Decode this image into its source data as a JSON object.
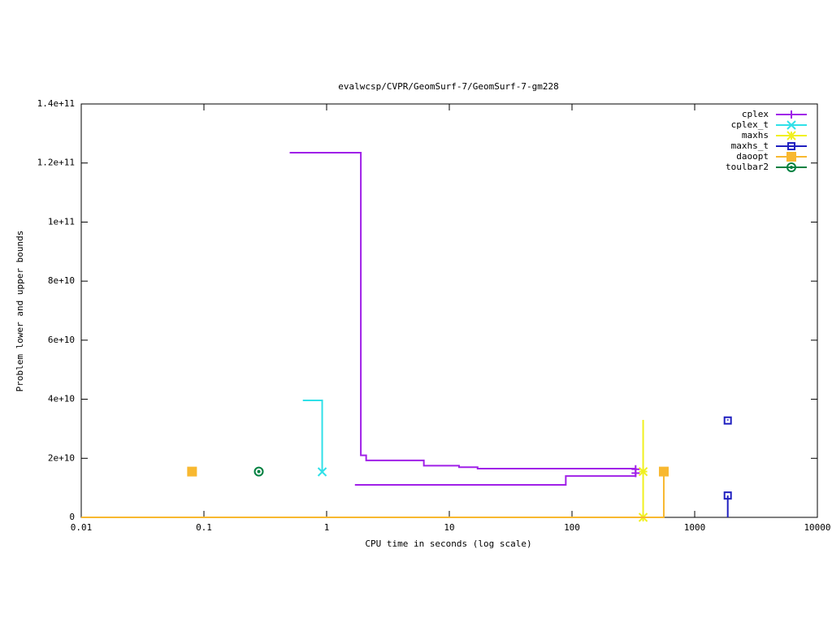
{
  "chart_data": {
    "type": "line",
    "title": "evalwcsp/CVPR/GeomSurf-7/GeomSurf-7-gm228",
    "x_label": "CPU time in seconds (log scale)",
    "y_label": "Problem lower and upper bounds",
    "x_log": true,
    "step": true,
    "xlim": [
      0.01,
      10000
    ],
    "xticks": [
      0.01,
      0.1,
      1,
      10,
      100,
      1000,
      10000
    ],
    "ylim": [
      0,
      140000000000
    ],
    "yticks": [
      0,
      {
        "value": 20000000000,
        "label": "2e+10"
      },
      {
        "value": 40000000000,
        "label": "4e+10"
      },
      {
        "value": 60000000000,
        "label": "6e+10"
      },
      {
        "value": 80000000000,
        "label": "8e+10"
      },
      {
        "value": 100000000000,
        "label": "1e+11"
      },
      {
        "value": 120000000000,
        "label": "1.2e+11"
      },
      {
        "value": 140000000000,
        "label": "1.4e+11"
      }
    ],
    "legend": "top-right",
    "series": [
      {
        "name": "cplex",
        "color": "#a020e8",
        "marker": "plus",
        "x": [
          1.7,
          89,
          330,
          330,
          0.5,
          1.9,
          2.1,
          6.2,
          12,
          17,
          330
        ],
        "values": [
          11000000000,
          14000000000,
          15000000000,
          null,
          123500000000,
          21000000000,
          19300000000,
          17500000000,
          17000000000,
          16500000000,
          16300000000
        ]
      },
      {
        "name": "cplex_t",
        "color": "#30e0e8",
        "marker": "cross",
        "x": [
          0.64,
          0.92
        ],
        "values": [
          39600000000,
          15400000000
        ]
      },
      {
        "name": "maxhs",
        "color": "#f0f020",
        "marker": "star",
        "x": [
          380,
          380,
          380,
          380
        ],
        "values": [
          33000000000,
          0,
          null,
          15500000000
        ]
      },
      {
        "name": "maxhs_t",
        "color": "#2020c0",
        "marker": "square-open",
        "x": [
          1860,
          1860,
          1860,
          1860,
          1860
        ],
        "values": [
          33200000000,
          32800000000,
          null,
          0,
          7400000000
        ]
      },
      {
        "name": "daoopt",
        "color": "#f8b830",
        "marker": "square",
        "x": [
          0.01,
          560,
          560,
          560,
          0.08
        ],
        "values": [
          0,
          0,
          15500000000,
          null,
          15500000000
        ]
      },
      {
        "name": "toulbar2",
        "color": "#008040",
        "marker": "circle",
        "x": [
          0.28
        ],
        "values": [
          15500000000
        ]
      }
    ]
  }
}
